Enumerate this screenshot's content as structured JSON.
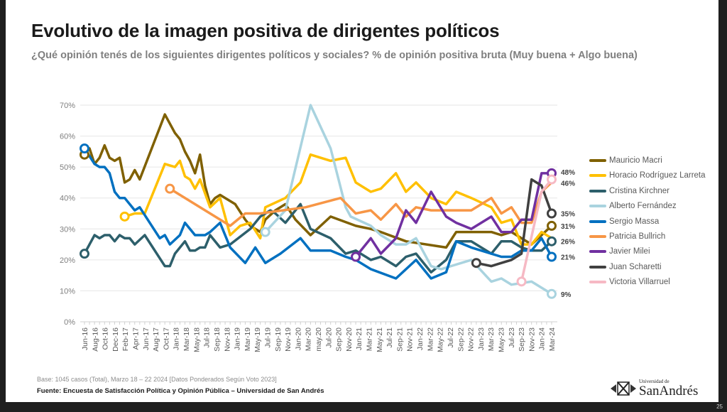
{
  "title": "Evolutivo de la imagen positiva de dirigentes políticos",
  "subtitle": "¿Qué opinión tenés de los siguientes dirigentes políticos y sociales? % de opinión positiva bruta (Muy buena + Algo buena)",
  "footer": {
    "base": "Base: 1045 casos (Total), Marzo 18 – 22 2024 [Datos Ponderados Según Voto 2023]",
    "source": "Fuente: Encuesta de Satisfacción Política y Opinión Pública – Universidad de San Andrés",
    "logo_text_small": "Universidad de",
    "logo_text_large": "SanAndrés",
    "page_number": "25"
  },
  "chart_data": {
    "type": "line",
    "title": "",
    "xlabel": "",
    "ylabel": "",
    "ylim": [
      0,
      70
    ],
    "y_ticks": [
      "0%",
      "10%",
      "20%",
      "30%",
      "40%",
      "50%",
      "60%",
      "70%"
    ],
    "grid": true,
    "legend_position": "right",
    "x_tick_labels": [
      "Jun-16",
      "Aug-16",
      "Oct-16",
      "Dec-16",
      "Feb-17",
      "Apr-17",
      "Jun-17",
      "Aug-17",
      "Oct-17",
      "Jan-18",
      "Mar-18",
      "May-18",
      "Jul-18",
      "Sep-18",
      "Nov-18",
      "Jan-19",
      "Mar-19",
      "May-19",
      "Jul-19",
      "Sep-19",
      "Nov-19",
      "Jan-20",
      "Mar-20",
      "may.20",
      "Jul-20",
      "Sep-20",
      "Nov-20",
      "Jan-21",
      "Mar-21",
      "May-21",
      "Jul-21",
      "Sep-21",
      "Nov-21",
      "Jan-22",
      "Mar-22",
      "May-22",
      "Jul-22",
      "Sep-22",
      "Nov-22",
      "Jan-23",
      "Mar-23",
      "May-23",
      "Jul-23",
      "Sep-23",
      "Nov-23",
      "Jan-24",
      "Mar-24"
    ],
    "series": [
      {
        "name": "Mauricio Macri",
        "color": "#7f6000",
        "end_label": "31%",
        "start_marker": true,
        "points": [
          [
            "2016-06",
            54
          ],
          [
            "2016-07",
            56
          ],
          [
            "2016-08",
            51
          ],
          [
            "2016-09",
            53
          ],
          [
            "2016-10",
            57
          ],
          [
            "2016-11",
            53
          ],
          [
            "2016-12",
            52
          ],
          [
            "2017-01",
            53
          ],
          [
            "2017-02",
            45
          ],
          [
            "2017-03",
            46
          ],
          [
            "2017-04",
            49
          ],
          [
            "2017-05",
            46
          ],
          [
            "2017-10",
            67
          ],
          [
            "2017-12",
            61
          ],
          [
            "2018-01",
            59
          ],
          [
            "2018-02",
            55
          ],
          [
            "2018-03",
            52
          ],
          [
            "2018-04",
            48
          ],
          [
            "2018-05",
            54
          ],
          [
            "2018-06",
            44
          ],
          [
            "2018-07",
            38
          ],
          [
            "2018-08",
            40
          ],
          [
            "2018-09",
            41
          ],
          [
            "2018-10",
            40
          ],
          [
            "2018-12",
            38
          ],
          [
            "2019-02",
            33
          ],
          [
            "2019-03",
            31
          ],
          [
            "2019-05",
            29
          ],
          [
            "2019-06",
            33
          ],
          [
            "2019-08",
            36
          ],
          [
            "2019-10",
            38
          ],
          [
            "2019-12",
            33
          ],
          [
            "2020-03",
            28
          ],
          [
            "2020-07",
            34
          ],
          [
            "2020-12",
            31
          ],
          [
            "2021-03",
            30
          ],
          [
            "2021-05",
            29
          ],
          [
            "2021-10",
            26
          ],
          [
            "2022-06",
            24
          ],
          [
            "2022-08",
            29
          ],
          [
            "2023-03",
            29
          ],
          [
            "2023-05",
            28
          ],
          [
            "2023-07",
            29
          ],
          [
            "2023-11",
            25
          ],
          [
            "2024-01",
            28
          ],
          [
            "2024-03",
            31
          ]
        ]
      },
      {
        "name": "Horacio Rodríguez Larreta",
        "color": "#ffc000",
        "end_label": "",
        "start_marker": true,
        "points": [
          [
            "2017-02",
            34
          ],
          [
            "2017-04",
            35
          ],
          [
            "2017-06",
            35
          ],
          [
            "2017-10",
            51
          ],
          [
            "2017-12",
            50
          ],
          [
            "2018-01",
            52
          ],
          [
            "2018-02",
            47
          ],
          [
            "2018-03",
            46
          ],
          [
            "2018-04",
            43
          ],
          [
            "2018-05",
            46
          ],
          [
            "2018-07",
            37
          ],
          [
            "2018-09",
            40
          ],
          [
            "2018-11",
            28
          ],
          [
            "2019-01",
            31
          ],
          [
            "2019-03",
            32
          ],
          [
            "2019-05",
            27
          ],
          [
            "2019-06",
            37
          ],
          [
            "2019-10",
            40
          ],
          [
            "2020-01",
            45
          ],
          [
            "2020-03",
            54
          ],
          [
            "2020-07",
            52
          ],
          [
            "2020-10",
            53
          ],
          [
            "2020-12",
            45
          ],
          [
            "2021-03",
            42
          ],
          [
            "2021-05",
            43
          ],
          [
            "2021-08",
            48
          ],
          [
            "2021-10",
            42
          ],
          [
            "2021-12",
            45
          ],
          [
            "2022-03",
            40
          ],
          [
            "2022-06",
            38
          ],
          [
            "2022-08",
            42
          ],
          [
            "2022-11",
            40
          ],
          [
            "2023-03",
            37
          ],
          [
            "2023-05",
            32
          ],
          [
            "2023-07",
            33
          ],
          [
            "2023-09",
            25
          ],
          [
            "2023-11",
            25
          ],
          [
            "2024-01",
            29
          ],
          [
            "2024-03",
            27
          ]
        ]
      },
      {
        "name": "Cristina Kirchner",
        "color": "#2d5f6b",
        "end_label": "26%",
        "start_marker": true,
        "points": [
          [
            "2016-06",
            22
          ],
          [
            "2016-08",
            28
          ],
          [
            "2016-09",
            27
          ],
          [
            "2016-10",
            28
          ],
          [
            "2016-11",
            28
          ],
          [
            "2016-12",
            26
          ],
          [
            "2017-01",
            28
          ],
          [
            "2017-02",
            27
          ],
          [
            "2017-03",
            27
          ],
          [
            "2017-04",
            25
          ],
          [
            "2017-06",
            28
          ],
          [
            "2017-10",
            18
          ],
          [
            "2017-11",
            18
          ],
          [
            "2017-12",
            22
          ],
          [
            "2018-02",
            26
          ],
          [
            "2018-03",
            23
          ],
          [
            "2018-04",
            23
          ],
          [
            "2018-05",
            24
          ],
          [
            "2018-06",
            24
          ],
          [
            "2018-07",
            28
          ],
          [
            "2018-09",
            24
          ],
          [
            "2018-11",
            25
          ],
          [
            "2019-03",
            30
          ],
          [
            "2019-05",
            34
          ],
          [
            "2019-07",
            36
          ],
          [
            "2019-08",
            35
          ],
          [
            "2019-10",
            32
          ],
          [
            "2020-01",
            38
          ],
          [
            "2020-03",
            30
          ],
          [
            "2020-07",
            27
          ],
          [
            "2020-10",
            22
          ],
          [
            "2020-12",
            23
          ],
          [
            "2021-03",
            20
          ],
          [
            "2021-05",
            21
          ],
          [
            "2021-08",
            18
          ],
          [
            "2021-10",
            21
          ],
          [
            "2021-12",
            22
          ],
          [
            "2022-03",
            16
          ],
          [
            "2022-06",
            20
          ],
          [
            "2022-08",
            26
          ],
          [
            "2022-11",
            26
          ],
          [
            "2023-03",
            22
          ],
          [
            "2023-05",
            26
          ],
          [
            "2023-07",
            26
          ],
          [
            "2023-09",
            24
          ],
          [
            "2023-11",
            23
          ],
          [
            "2024-01",
            23
          ],
          [
            "2024-03",
            26
          ]
        ]
      },
      {
        "name": "Alberto Fernández",
        "color": "#a9d3df",
        "end_label": "9%",
        "start_marker": true,
        "points": [
          [
            "2019-06",
            29
          ],
          [
            "2019-10",
            36
          ],
          [
            "2020-03",
            70
          ],
          [
            "2020-07",
            56
          ],
          [
            "2020-10",
            37
          ],
          [
            "2020-11",
            34
          ],
          [
            "2021-03",
            31
          ],
          [
            "2021-05",
            28
          ],
          [
            "2021-08",
            25
          ],
          [
            "2021-10",
            25
          ],
          [
            "2021-12",
            27
          ],
          [
            "2022-03",
            18
          ],
          [
            "2022-05",
            17
          ],
          [
            "2022-11",
            20
          ],
          [
            "2023-03",
            13
          ],
          [
            "2023-05",
            14
          ],
          [
            "2023-07",
            12
          ],
          [
            "2023-11",
            13
          ],
          [
            "2024-03",
            9
          ]
        ]
      },
      {
        "name": "Sergio Massa",
        "color": "#0070c0",
        "end_label": "21%",
        "start_marker": true,
        "points": [
          [
            "2016-06",
            56
          ],
          [
            "2016-08",
            51
          ],
          [
            "2016-09",
            50
          ],
          [
            "2016-10",
            50
          ],
          [
            "2016-11",
            48
          ],
          [
            "2016-12",
            42
          ],
          [
            "2017-01",
            40
          ],
          [
            "2017-02",
            40
          ],
          [
            "2017-04",
            36
          ],
          [
            "2017-05",
            37
          ],
          [
            "2017-09",
            27
          ],
          [
            "2017-10",
            28
          ],
          [
            "2017-11",
            25
          ],
          [
            "2018-01",
            28
          ],
          [
            "2018-02",
            32
          ],
          [
            "2018-04",
            28
          ],
          [
            "2018-06",
            28
          ],
          [
            "2018-07",
            29
          ],
          [
            "2018-09",
            32
          ],
          [
            "2018-11",
            24
          ],
          [
            "2019-02",
            19
          ],
          [
            "2019-04",
            24
          ],
          [
            "2019-06",
            19
          ],
          [
            "2019-09",
            22
          ],
          [
            "2020-01",
            27
          ],
          [
            "2020-03",
            23
          ],
          [
            "2020-07",
            23
          ],
          [
            "2020-10",
            21
          ],
          [
            "2020-12",
            20
          ],
          [
            "2021-03",
            17
          ],
          [
            "2021-08",
            14
          ],
          [
            "2021-12",
            20
          ],
          [
            "2022-03",
            14
          ],
          [
            "2022-06",
            16
          ],
          [
            "2022-08",
            26
          ],
          [
            "2022-11",
            24
          ],
          [
            "2023-05",
            21
          ],
          [
            "2023-07",
            21
          ],
          [
            "2023-09",
            23
          ],
          [
            "2023-11",
            23
          ],
          [
            "2024-01",
            27
          ],
          [
            "2024-03",
            21
          ]
        ]
      },
      {
        "name": "Patricia Bullrich",
        "color": "#f79646",
        "end_label": "",
        "start_marker": true,
        "points": [
          [
            "2017-11",
            43
          ],
          [
            "2018-11",
            31
          ],
          [
            "2019-02",
            35
          ],
          [
            "2019-05",
            35
          ],
          [
            "2020-02",
            37
          ],
          [
            "2020-09",
            40
          ],
          [
            "2020-12",
            35
          ],
          [
            "2021-03",
            36
          ],
          [
            "2021-05",
            33
          ],
          [
            "2021-08",
            38
          ],
          [
            "2021-10",
            34
          ],
          [
            "2021-12",
            37
          ],
          [
            "2022-03",
            36
          ],
          [
            "2022-11",
            36
          ],
          [
            "2023-03",
            40
          ],
          [
            "2023-05",
            35
          ],
          [
            "2023-07",
            37
          ],
          [
            "2023-09",
            32
          ],
          [
            "2023-11",
            32
          ],
          [
            "2024-01",
            42
          ],
          [
            "2024-03",
            45
          ]
        ]
      },
      {
        "name": "Javier Milei",
        "color": "#7030a0",
        "end_label": "48%",
        "start_marker": true,
        "points": [
          [
            "2020-12",
            21
          ],
          [
            "2021-03",
            27
          ],
          [
            "2021-05",
            22
          ],
          [
            "2021-08",
            27
          ],
          [
            "2021-10",
            36
          ],
          [
            "2021-12",
            32
          ],
          [
            "2022-03",
            42
          ],
          [
            "2022-06",
            34
          ],
          [
            "2022-08",
            32
          ],
          [
            "2022-11",
            30
          ],
          [
            "2023-03",
            34
          ],
          [
            "2023-05",
            29
          ],
          [
            "2023-07",
            29
          ],
          [
            "2023-09",
            33
          ],
          [
            "2023-11",
            33
          ],
          [
            "2024-01",
            48
          ],
          [
            "2024-03",
            48
          ]
        ]
      },
      {
        "name": "Juan Scharetti",
        "color": "#404040",
        "end_label": "35%",
        "start_marker": true,
        "points": [
          [
            "2022-12",
            19
          ],
          [
            "2023-03",
            18
          ],
          [
            "2023-05",
            19
          ],
          [
            "2023-07",
            20
          ],
          [
            "2023-09",
            22
          ],
          [
            "2023-11",
            46
          ],
          [
            "2024-01",
            44
          ],
          [
            "2024-03",
            35
          ]
        ]
      },
      {
        "name": "Victoria Villarruel",
        "color": "#f6b9c4",
        "end_label": "46%",
        "start_marker": true,
        "points": [
          [
            "2023-09",
            13
          ],
          [
            "2024-01",
            42
          ],
          [
            "2024-03",
            46
          ]
        ]
      }
    ]
  }
}
